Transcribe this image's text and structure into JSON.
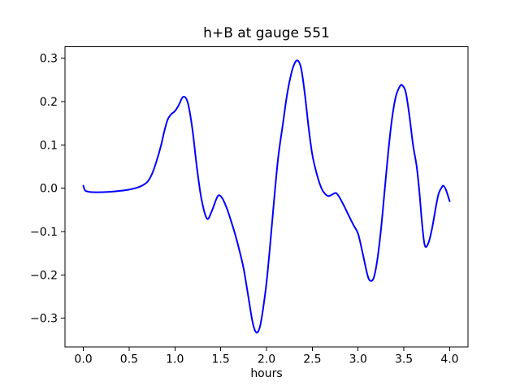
{
  "figure": {
    "background": "#ffffff"
  },
  "chart_data": {
    "type": "line",
    "title": "h+B at gauge 551",
    "xlabel": "hours",
    "ylabel": "",
    "grid": false,
    "legend": null,
    "xlim": [
      -0.2,
      4.2
    ],
    "ylim": [
      -0.3665,
      0.3265
    ],
    "xticks": [
      0.0,
      0.5,
      1.0,
      1.5,
      2.0,
      2.5,
      3.0,
      3.5,
      4.0
    ],
    "xtick_labels": [
      "0.0",
      "0.5",
      "1.0",
      "1.5",
      "2.0",
      "2.5",
      "3.0",
      "3.5",
      "4.0"
    ],
    "yticks": [
      -0.3,
      -0.2,
      -0.1,
      0.0,
      0.1,
      0.2,
      0.3
    ],
    "ytick_labels": [
      "−0.3",
      "−0.2",
      "−0.1",
      "0.0",
      "0.1",
      "0.2",
      "0.3"
    ],
    "series": [
      {
        "name": "h+B at gauge 551",
        "color": "#0000ff",
        "x": [
          0.0,
          0.02,
          0.06,
          0.1,
          0.2,
          0.3,
          0.4,
          0.5,
          0.58,
          0.64,
          0.7,
          0.75,
          0.8,
          0.85,
          0.88,
          0.92,
          0.96,
          1.0,
          1.04,
          1.09,
          1.14,
          1.19,
          1.24,
          1.29,
          1.35,
          1.4,
          1.45,
          1.48,
          1.52,
          1.57,
          1.62,
          1.66,
          1.7,
          1.75,
          1.8,
          1.84,
          1.87,
          1.9,
          1.93,
          1.96,
          2.0,
          2.04,
          2.09,
          2.13,
          2.18,
          2.22,
          2.26,
          2.3,
          2.34,
          2.38,
          2.42,
          2.46,
          2.5,
          2.55,
          2.6,
          2.64,
          2.68,
          2.72,
          2.76,
          2.8,
          2.85,
          2.9,
          2.95,
          3.0,
          3.05,
          3.1,
          3.13,
          3.17,
          3.21,
          3.25,
          3.29,
          3.33,
          3.37,
          3.41,
          3.45,
          3.48,
          3.52,
          3.56,
          3.6,
          3.64,
          3.67,
          3.7,
          3.73,
          3.77,
          3.81,
          3.85,
          3.88,
          3.91,
          3.93,
          3.96,
          4.0
        ],
        "y": [
          0.006,
          -0.005,
          -0.008,
          -0.009,
          -0.009,
          -0.008,
          -0.006,
          -0.003,
          0.001,
          0.006,
          0.015,
          0.033,
          0.063,
          0.1,
          0.128,
          0.158,
          0.171,
          0.178,
          0.191,
          0.211,
          0.198,
          0.138,
          0.048,
          -0.025,
          -0.07,
          -0.054,
          -0.026,
          -0.016,
          -0.024,
          -0.048,
          -0.08,
          -0.108,
          -0.14,
          -0.185,
          -0.248,
          -0.3,
          -0.326,
          -0.333,
          -0.318,
          -0.282,
          -0.218,
          -0.13,
          -0.01,
          0.075,
          0.15,
          0.21,
          0.255,
          0.285,
          0.295,
          0.275,
          0.215,
          0.14,
          0.078,
          0.032,
          0.0,
          -0.013,
          -0.018,
          -0.014,
          -0.011,
          -0.022,
          -0.042,
          -0.064,
          -0.085,
          -0.105,
          -0.15,
          -0.198,
          -0.213,
          -0.207,
          -0.165,
          -0.095,
          -0.005,
          0.085,
          0.16,
          0.21,
          0.233,
          0.238,
          0.222,
          0.168,
          0.1,
          0.05,
          -0.01,
          -0.085,
          -0.133,
          -0.125,
          -0.09,
          -0.042,
          -0.012,
          0.001,
          0.006,
          -0.004,
          -0.03
        ]
      }
    ],
    "style": {
      "line_color": "#0000ff",
      "axes_color": "#000000",
      "tick_label_color": "#000000",
      "background": "#ffffff"
    }
  }
}
